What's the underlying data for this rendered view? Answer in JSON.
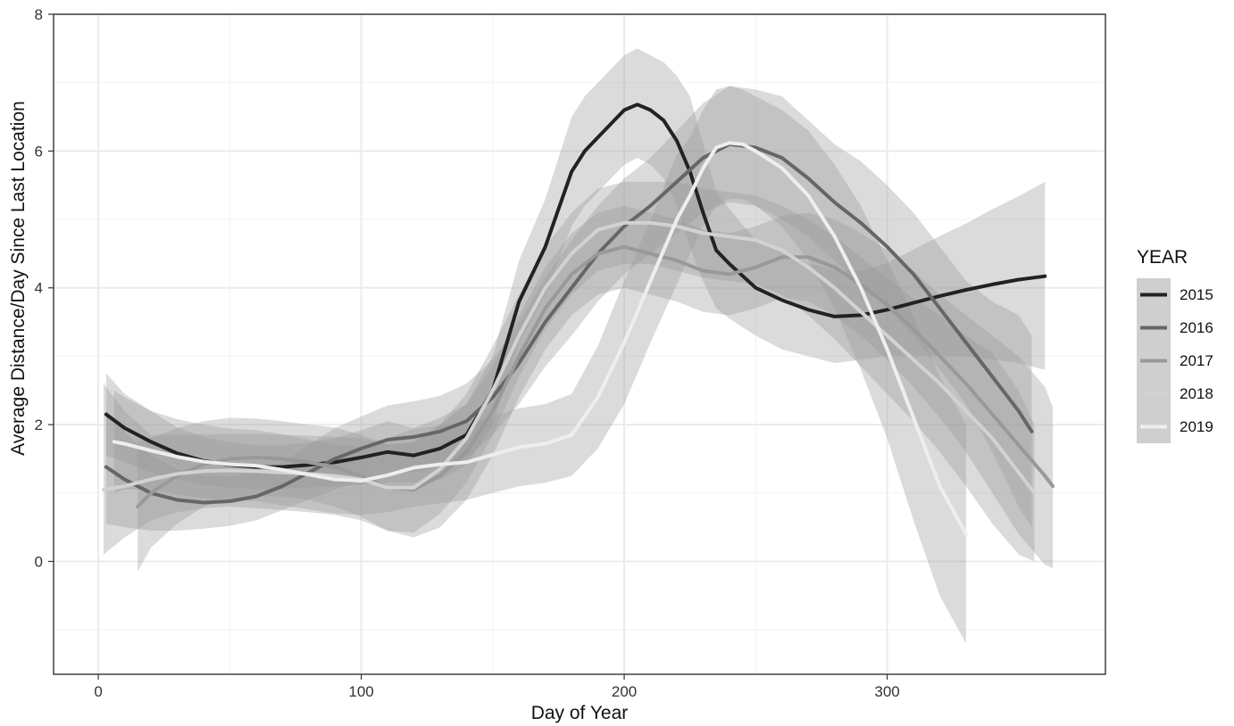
{
  "chart_data": {
    "type": "line",
    "title": "",
    "xlabel": "Day of Year",
    "ylabel": "Average Distance/Day Since Last Location",
    "xlim": [
      -17,
      383
    ],
    "ylim": [
      -1.65,
      8
    ],
    "x_ticks": [
      0,
      100,
      200,
      300
    ],
    "y_ticks": [
      0,
      2,
      4,
      6,
      8
    ],
    "grid": true,
    "confidence_bands": true,
    "legend": {
      "title": "YEAR",
      "position": "right"
    },
    "series": [
      {
        "name": "2015",
        "color": "#222222",
        "x": [
          3,
          10,
          20,
          30,
          40,
          50,
          60,
          70,
          80,
          90,
          100,
          110,
          120,
          130,
          140,
          150,
          160,
          170,
          180,
          185,
          190,
          195,
          200,
          205,
          210,
          215,
          220,
          225,
          230,
          235,
          240,
          250,
          260,
          270,
          280,
          290,
          300,
          310,
          320,
          330,
          340,
          350,
          360
        ],
        "y": [
          2.15,
          1.95,
          1.75,
          1.58,
          1.47,
          1.41,
          1.38,
          1.38,
          1.41,
          1.45,
          1.52,
          1.6,
          1.55,
          1.65,
          1.85,
          2.5,
          3.8,
          4.6,
          5.7,
          6.0,
          6.2,
          6.4,
          6.6,
          6.68,
          6.6,
          6.45,
          6.15,
          5.7,
          5.1,
          4.55,
          4.35,
          4.0,
          3.82,
          3.68,
          3.58,
          3.6,
          3.68,
          3.78,
          3.88,
          3.97,
          4.05,
          4.12,
          4.17
        ],
        "lower": [
          1.55,
          1.45,
          1.3,
          1.2,
          1.12,
          1.08,
          1.06,
          1.06,
          1.08,
          1.1,
          1.12,
          1.15,
          1.15,
          1.2,
          1.4,
          2.0,
          3.2,
          3.9,
          4.9,
          5.2,
          5.4,
          5.6,
          5.8,
          5.9,
          5.8,
          5.6,
          5.2,
          4.6,
          4.1,
          3.7,
          3.55,
          3.3,
          3.1,
          3.0,
          2.9,
          2.95,
          3.0,
          3.0,
          3.0,
          3.0,
          2.95,
          2.9,
          2.8
        ],
        "upper": [
          2.75,
          2.45,
          2.2,
          1.96,
          1.82,
          1.74,
          1.7,
          1.7,
          1.74,
          1.8,
          1.92,
          2.05,
          1.95,
          2.1,
          2.3,
          3.0,
          4.4,
          5.3,
          6.5,
          6.8,
          7.0,
          7.2,
          7.4,
          7.5,
          7.4,
          7.3,
          7.1,
          6.8,
          6.1,
          5.4,
          5.15,
          4.7,
          4.55,
          4.36,
          4.26,
          4.25,
          4.36,
          4.56,
          4.76,
          4.94,
          5.15,
          5.34,
          5.55
        ]
      },
      {
        "name": "2016",
        "color": "#666666",
        "x": [
          3,
          10,
          20,
          30,
          40,
          50,
          60,
          70,
          80,
          90,
          100,
          110,
          120,
          130,
          140,
          150,
          160,
          170,
          180,
          190,
          200,
          210,
          220,
          230,
          240,
          250,
          260,
          270,
          280,
          290,
          300,
          310,
          320,
          330,
          340,
          350,
          355
        ],
        "y": [
          1.38,
          1.2,
          1.0,
          0.9,
          0.86,
          0.88,
          0.95,
          1.1,
          1.3,
          1.5,
          1.65,
          1.78,
          1.82,
          1.9,
          2.05,
          2.4,
          2.9,
          3.5,
          4.0,
          4.5,
          4.9,
          5.2,
          5.55,
          5.9,
          6.1,
          6.05,
          5.9,
          5.6,
          5.25,
          4.95,
          4.6,
          4.2,
          3.7,
          3.2,
          2.7,
          2.2,
          1.9
        ],
        "lower": [
          0.55,
          0.5,
          0.45,
          0.45,
          0.48,
          0.52,
          0.6,
          0.75,
          0.9,
          1.05,
          1.18,
          1.28,
          1.3,
          1.38,
          1.5,
          1.85,
          2.3,
          2.85,
          3.3,
          3.8,
          4.2,
          4.5,
          4.8,
          5.1,
          5.25,
          5.2,
          5.0,
          4.75,
          4.4,
          4.05,
          3.7,
          3.3,
          2.8,
          2.3,
          1.6,
          0.8,
          0.5
        ],
        "upper": [
          2.2,
          1.9,
          1.55,
          1.35,
          1.25,
          1.24,
          1.3,
          1.45,
          1.7,
          1.95,
          2.12,
          2.28,
          2.34,
          2.42,
          2.6,
          2.95,
          3.5,
          4.15,
          4.7,
          5.2,
          5.6,
          5.9,
          6.3,
          6.7,
          6.95,
          6.9,
          6.8,
          6.45,
          6.1,
          5.85,
          5.5,
          5.1,
          4.6,
          4.1,
          3.8,
          3.6,
          3.3
        ]
      },
      {
        "name": "2017",
        "color": "#999999",
        "x": [
          15,
          20,
          30,
          40,
          50,
          60,
          70,
          80,
          90,
          100,
          110,
          120,
          130,
          140,
          150,
          160,
          170,
          180,
          190,
          200,
          210,
          220,
          230,
          240,
          250,
          260,
          270,
          280,
          290,
          300,
          310,
          320,
          330,
          340,
          350,
          360,
          363
        ],
        "y": [
          0.8,
          1.0,
          1.25,
          1.42,
          1.5,
          1.52,
          1.5,
          1.45,
          1.38,
          1.25,
          1.08,
          1.05,
          1.25,
          1.6,
          2.2,
          3.0,
          3.7,
          4.2,
          4.5,
          4.6,
          4.5,
          4.4,
          4.25,
          4.2,
          4.3,
          4.45,
          4.45,
          4.3,
          4.05,
          3.75,
          3.4,
          3.0,
          2.6,
          2.15,
          1.7,
          1.25,
          1.1
        ],
        "lower": [
          -0.15,
          0.2,
          0.55,
          0.8,
          0.9,
          0.95,
          0.95,
          0.9,
          0.8,
          0.65,
          0.45,
          0.35,
          0.5,
          0.9,
          1.55,
          2.4,
          3.1,
          3.6,
          3.9,
          4.0,
          3.9,
          3.8,
          3.65,
          3.6,
          3.7,
          3.85,
          3.8,
          3.6,
          3.3,
          2.95,
          2.55,
          2.1,
          1.6,
          1.0,
          0.4,
          -0.05,
          -0.1
        ],
        "upper": [
          1.75,
          1.8,
          1.95,
          2.05,
          2.1,
          2.09,
          2.05,
          2.0,
          1.96,
          1.85,
          1.71,
          1.75,
          2.0,
          2.3,
          2.85,
          3.6,
          4.3,
          4.8,
          5.1,
          5.2,
          5.1,
          5.0,
          4.85,
          4.8,
          4.9,
          5.05,
          5.1,
          5.0,
          4.8,
          4.55,
          4.25,
          3.9,
          3.6,
          3.3,
          3.0,
          2.55,
          2.25
        ]
      },
      {
        "name": "2018",
        "color": "#d2d2d2",
        "x": [
          2,
          10,
          20,
          30,
          40,
          50,
          60,
          70,
          80,
          90,
          100,
          110,
          120,
          130,
          140,
          150,
          160,
          170,
          180,
          190,
          200,
          210,
          220,
          230,
          240,
          250,
          260,
          270,
          280,
          290,
          300,
          310,
          320,
          330,
          340,
          350,
          356
        ],
        "y": [
          1.05,
          1.1,
          1.2,
          1.28,
          1.32,
          1.33,
          1.32,
          1.3,
          1.28,
          1.25,
          1.2,
          1.08,
          1.08,
          1.35,
          1.8,
          2.5,
          3.3,
          4.0,
          4.5,
          4.85,
          4.95,
          4.95,
          4.9,
          4.8,
          4.75,
          4.7,
          4.55,
          4.3,
          4.0,
          3.65,
          3.3,
          2.95,
          2.6,
          2.2,
          1.8,
          1.3,
          1.0
        ],
        "lower": [
          0.1,
          0.35,
          0.6,
          0.72,
          0.78,
          0.8,
          0.78,
          0.75,
          0.72,
          0.68,
          0.6,
          0.45,
          0.42,
          0.7,
          1.15,
          1.85,
          2.7,
          3.4,
          3.9,
          4.25,
          4.35,
          4.35,
          4.25,
          4.15,
          4.1,
          4.05,
          3.9,
          3.6,
          3.25,
          2.85,
          2.45,
          2.05,
          1.6,
          1.1,
          0.55,
          0.1,
          0.0
        ],
        "upper": [
          2.6,
          2.2,
          1.85,
          1.85,
          1.86,
          1.86,
          1.86,
          1.85,
          1.84,
          1.82,
          1.8,
          1.71,
          1.74,
          2.0,
          2.45,
          3.15,
          3.9,
          4.6,
          5.1,
          5.45,
          5.55,
          5.55,
          5.55,
          5.45,
          5.4,
          5.35,
          5.2,
          5.0,
          4.75,
          4.45,
          4.15,
          3.85,
          3.6,
          3.3,
          3.05,
          2.5,
          2.0
        ]
      },
      {
        "name": "2019",
        "color": "#eeeeee",
        "x": [
          6,
          10,
          20,
          30,
          40,
          50,
          60,
          70,
          80,
          90,
          100,
          110,
          120,
          130,
          140,
          150,
          160,
          170,
          180,
          190,
          200,
          210,
          220,
          225,
          230,
          235,
          240,
          245,
          250,
          260,
          270,
          280,
          290,
          300,
          310,
          320,
          330
        ],
        "y": [
          1.75,
          1.72,
          1.62,
          1.53,
          1.46,
          1.42,
          1.4,
          1.34,
          1.27,
          1.2,
          1.18,
          1.26,
          1.37,
          1.42,
          1.45,
          1.56,
          1.67,
          1.72,
          1.85,
          2.4,
          3.2,
          4.1,
          5.0,
          5.35,
          5.75,
          6.05,
          6.12,
          6.1,
          6.0,
          5.75,
          5.35,
          4.75,
          4.0,
          3.1,
          2.1,
          1.1,
          0.4
        ],
        "lower": [
          1.0,
          1.05,
          1.05,
          0.98,
          0.92,
          0.9,
          0.88,
          0.82,
          0.76,
          0.7,
          0.68,
          0.72,
          0.8,
          0.85,
          0.9,
          1.0,
          1.1,
          1.15,
          1.25,
          1.65,
          2.3,
          3.2,
          4.05,
          4.5,
          4.9,
          5.2,
          5.3,
          5.3,
          5.2,
          4.9,
          4.4,
          3.7,
          2.8,
          1.8,
          0.6,
          -0.5,
          -1.2
        ],
        "upper": [
          2.5,
          2.4,
          2.2,
          2.08,
          2.0,
          1.94,
          1.92,
          1.86,
          1.78,
          1.7,
          1.68,
          1.8,
          1.94,
          1.99,
          2.0,
          2.12,
          2.24,
          2.3,
          2.45,
          3.15,
          4.1,
          5.0,
          5.95,
          6.2,
          6.6,
          6.9,
          6.95,
          6.9,
          6.8,
          6.6,
          6.3,
          5.8,
          5.2,
          4.4,
          3.6,
          2.7,
          2.0
        ]
      }
    ]
  }
}
